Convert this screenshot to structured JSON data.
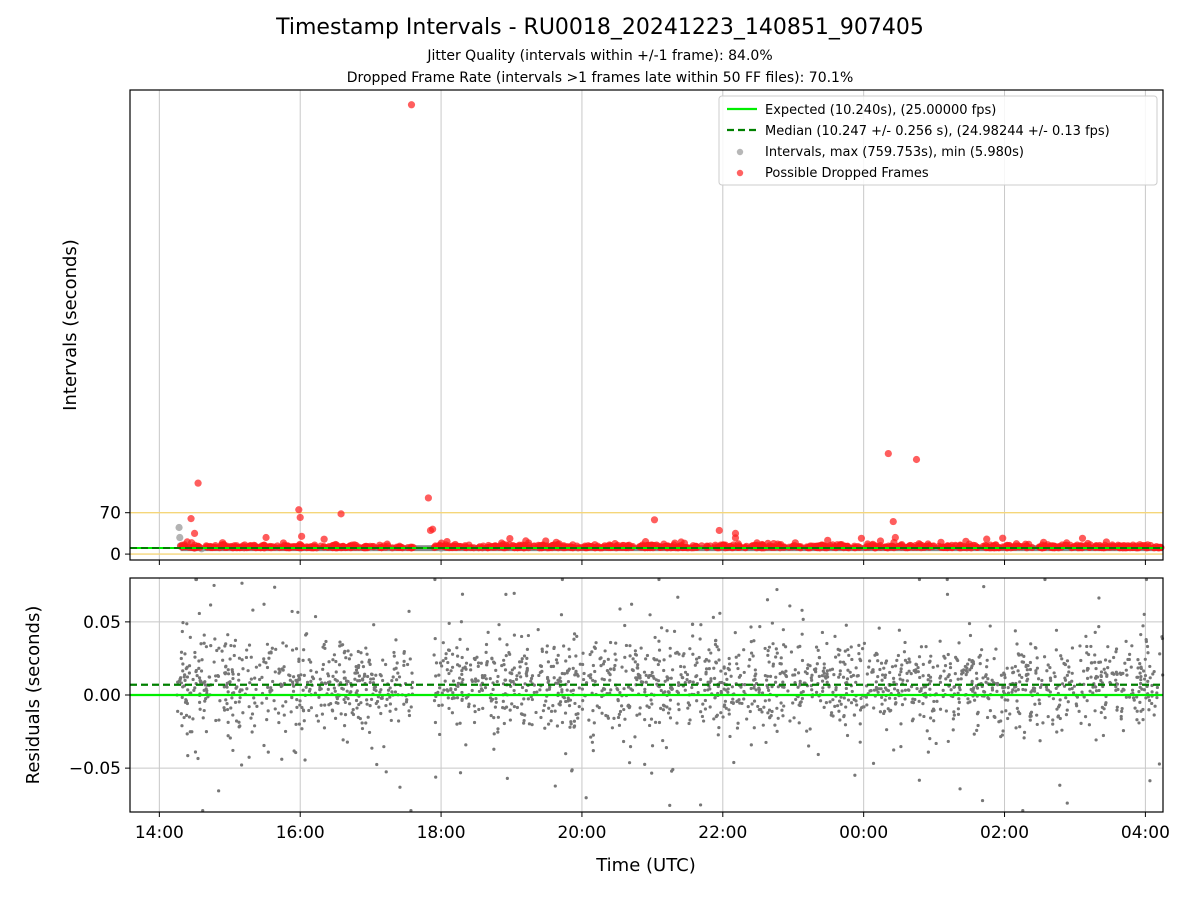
{
  "chart_data": [
    {
      "type": "scatter",
      "title": "Timestamp Intervals - RU0018_20241223_140851_907405",
      "subtitle_lines": [
        "Jitter Quality (intervals within +/-1 frame): 84.0%",
        "Dropped Frame Rate (intervals >1 frames late within 50 FF files): 70.1%"
      ],
      "ylabel": "Intervals (seconds)",
      "xlabel": "",
      "x_range_hours": [
        "13:35",
        "04:15"
      ],
      "x_ticks": [
        "14:00",
        "16:00",
        "18:00",
        "20:00",
        "22:00",
        "00:00",
        "02:00",
        "04:00"
      ],
      "x_tick_hours": [
        14,
        16,
        18,
        20,
        22,
        24,
        26,
        28
      ],
      "ylim": [
        -10,
        785
      ],
      "y_ticks": [
        0,
        70
      ],
      "grid": "x-only",
      "legend_position": "top-right",
      "reference_lines": [
        {
          "name": "Expected (10.240s), (25.00000 fps)",
          "value": 10.24,
          "style": "solid",
          "color": "#00ee00"
        },
        {
          "name": "Median (10.247 +/- 0.256 s), (24.98244 +/- 0.13 fps)",
          "value": 10.247,
          "style": "dashed",
          "color": "#008000"
        }
      ],
      "threshold_lines": [
        {
          "value": 70,
          "color": "#f5d67a"
        },
        {
          "value": 0,
          "color": "#f5d67a"
        }
      ],
      "series": [
        {
          "name": "Intervals, max (759.753s), min (5.980s)",
          "color": "#999999",
          "x_hours": [
            14.28,
            14.29,
            14.3,
            14.5,
            14.6,
            15.0,
            16.0,
            17.0,
            18.0
          ],
          "values": [
            45,
            28,
            14,
            10,
            9,
            11,
            10,
            11,
            10
          ]
        },
        {
          "name": "Possible Dropped Frames",
          "color": "#ff2020",
          "x_hours": [
            14.45,
            14.5,
            14.55,
            15.98,
            16.0,
            16.02,
            16.58,
            17.58,
            17.82,
            17.85,
            17.88,
            21.03,
            21.95,
            22.18,
            24.35,
            24.42,
            24.45,
            24.75
          ],
          "values": [
            60,
            35,
            120,
            75,
            62,
            30,
            68,
            760,
            95,
            40,
            42,
            58,
            40,
            35,
            170,
            55,
            28,
            160
          ]
        }
      ],
      "band": {
        "center_hours": [
          14.3,
          28.25
        ],
        "value_range": [
          10.2,
          18
        ],
        "note": "dense red/gray cluster band near 10–15 s"
      }
    },
    {
      "type": "scatter",
      "xlabel": "Time (UTC)",
      "ylabel": "Residuals (seconds)",
      "ylim": [
        -0.08,
        0.08
      ],
      "y_ticks": [
        -0.05,
        0.0,
        0.05
      ],
      "y_tick_labels": [
        "−0.05",
        "0.00",
        "0.05"
      ],
      "grid": "both",
      "reference_lines": [
        {
          "value": 0.0,
          "style": "solid",
          "color": "#00ee00"
        },
        {
          "value": 0.007,
          "style": "dashed",
          "color": "#008000"
        }
      ],
      "series": [
        {
          "name": "",
          "color": "#777777",
          "x_hours_range": [
            14.25,
            28.25
          ],
          "gap_hours": [
            17.6,
            17.9
          ],
          "center_value": 0.007,
          "spread_core": 0.015,
          "spread_outliers": 0.07,
          "point_count": 2200
        }
      ]
    }
  ]
}
